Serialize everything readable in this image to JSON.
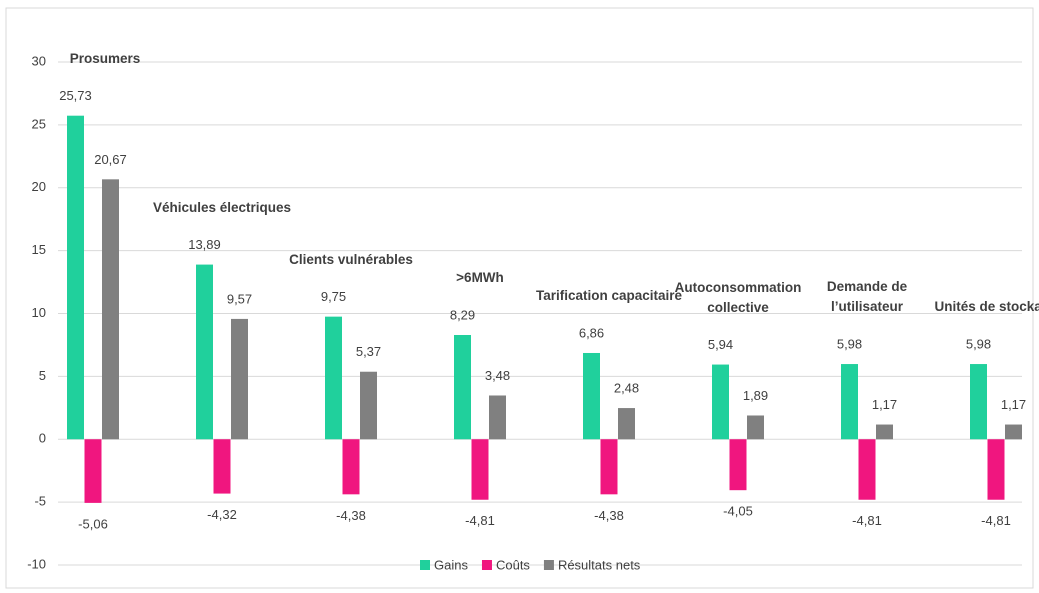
{
  "chart_data": {
    "type": "bar",
    "categories": [
      "Prosumers",
      "Véhicules électriques",
      "Clients vulnérables",
      ">6MWh",
      "Tarification capacitaire",
      "Autoconsommation collective",
      "Demande de l’utilisateur",
      "Unités de stockage"
    ],
    "series": [
      {
        "name": "Gains",
        "color": "#20d09c",
        "values": [
          25.73,
          13.89,
          9.75,
          8.29,
          6.86,
          5.94,
          5.98,
          5.98
        ],
        "value_labels": [
          "25,73",
          "13,89",
          "9,75",
          "8,29",
          "6,86",
          "5,94",
          "5,98",
          "5,98"
        ]
      },
      {
        "name": "Coûts",
        "color": "#f0167f",
        "values": [
          -5.06,
          -4.32,
          -4.38,
          -4.81,
          -4.38,
          -4.05,
          -4.81,
          -4.81
        ],
        "value_labels": [
          "-5,06",
          "-4,32",
          "-4,38",
          "-4,81",
          "-4,38",
          "-4,05",
          "-4,81",
          "-4,81"
        ]
      },
      {
        "name": "Résultats nets",
        "color": "#808080",
        "values": [
          20.67,
          9.57,
          5.37,
          3.48,
          2.48,
          1.89,
          1.17,
          1.17
        ],
        "value_labels": [
          "20,67",
          "9,57",
          "5,37",
          "3,48",
          "2,48",
          "1,89",
          "1,17",
          "1,17"
        ]
      }
    ],
    "ylim": [
      -10,
      30
    ],
    "yticks": [
      -10,
      -5,
      0,
      5,
      10,
      15,
      20,
      25,
      30
    ],
    "grid": true,
    "legend": "bottom"
  }
}
